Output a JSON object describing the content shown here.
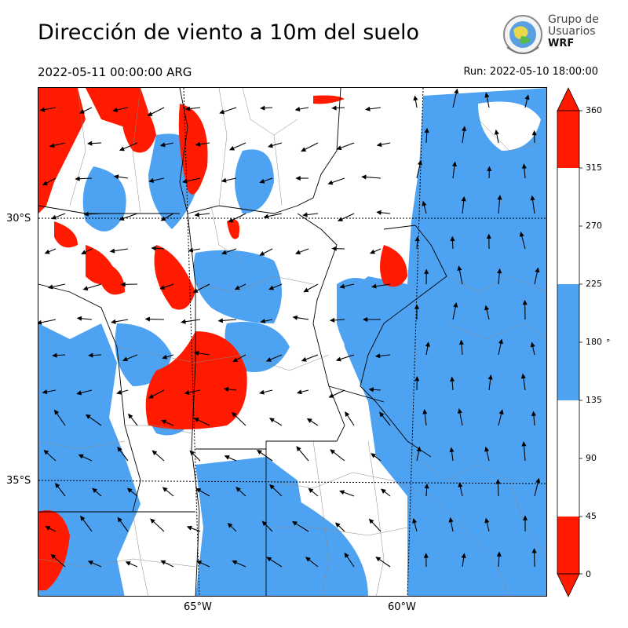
{
  "header": {
    "title": "Dirección de viento a 10m del suelo",
    "valid_time": "2022-05-11 00:00:00 ARG",
    "run_time": "Run: 2022-05-10 18:00:00"
  },
  "logo": {
    "line1": "Grupo de",
    "line2": "Usuarios",
    "line3": "WRF"
  },
  "map": {
    "lat_labels": [
      "30°S",
      "35°S"
    ],
    "lon_labels": [
      "65°W",
      "60°W"
    ]
  },
  "colorbar": {
    "unit": "°",
    "ticks": [
      "0",
      "45",
      "90",
      "135",
      "180",
      "225",
      "270",
      "315",
      "360"
    ],
    "bins": [
      {
        "from": 0,
        "to": 45,
        "color": "#ff1a00"
      },
      {
        "from": 45,
        "to": 135,
        "color": "#ffffff"
      },
      {
        "from": 135,
        "to": 225,
        "color": "#4da3f2"
      },
      {
        "from": 225,
        "to": 315,
        "color": "#ffffff"
      },
      {
        "from": 315,
        "to": 360,
        "color": "#ff1a00"
      }
    ]
  },
  "colors": {
    "red": "#ff1a00",
    "blue": "#4da3f2",
    "white": "#ffffff"
  }
}
